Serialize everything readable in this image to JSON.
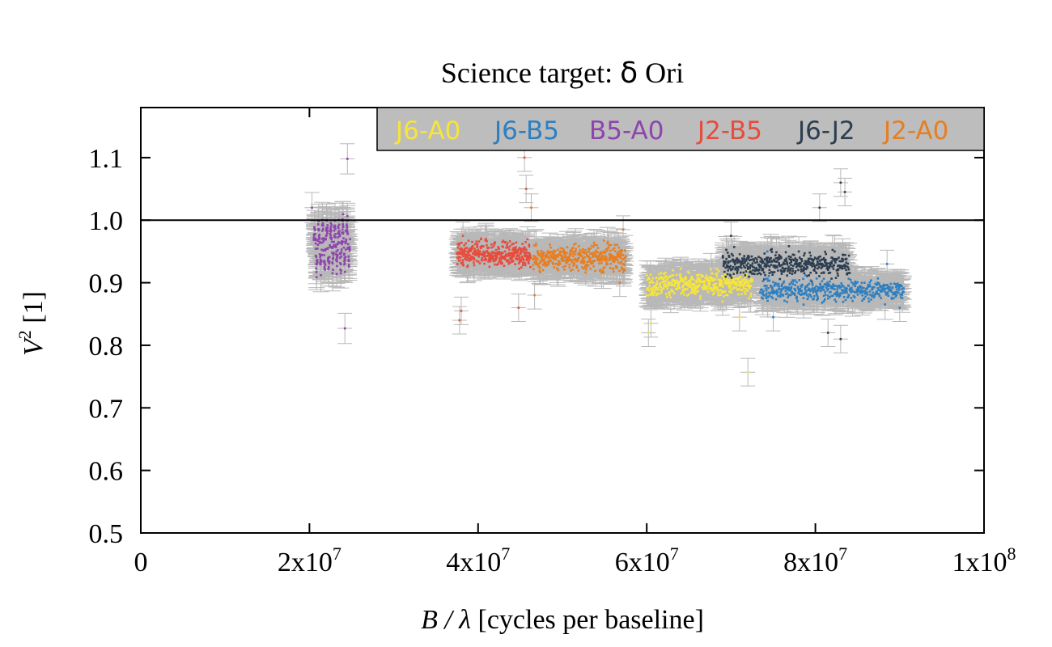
{
  "chart_data": {
    "type": "scatter",
    "title_prefix": "Science target: ",
    "title_greek": "δ",
    "title_suffix": " Ori",
    "xlabel_prefix": "B / λ",
    "xlabel_suffix": " [cycles per baseline]",
    "ylabel_main": "V",
    "ylabel_sup": "2",
    "ylabel_suffix": " [1]",
    "xlim": [
      0,
      100000000
    ],
    "ylim": [
      0.5,
      1.18
    ],
    "x_ticks": [
      {
        "value": 0,
        "mant": "0",
        "exp": ""
      },
      {
        "value": 20000000,
        "mant": "2x10",
        "exp": "7"
      },
      {
        "value": 40000000,
        "mant": "4x10",
        "exp": "7"
      },
      {
        "value": 60000000,
        "mant": "6x10",
        "exp": "7"
      },
      {
        "value": 80000000,
        "mant": "8x10",
        "exp": "7"
      },
      {
        "value": 100000000,
        "mant": "1x10",
        "exp": "8"
      }
    ],
    "y_ticks": [
      {
        "value": 0.5,
        "label": "0.5"
      },
      {
        "value": 0.6,
        "label": "0.6"
      },
      {
        "value": 0.7,
        "label": "0.7"
      },
      {
        "value": 0.8,
        "label": "0.8"
      },
      {
        "value": 0.9,
        "label": "0.9"
      },
      {
        "value": 1.0,
        "label": "1.0"
      },
      {
        "value": 1.1,
        "label": "1.1"
      }
    ],
    "reference_line_y": 1.0,
    "errorbar_color": "#b8b8b8",
    "legend": {
      "placement": "top-right",
      "background": "#bdbdbd",
      "entries": [
        {
          "label": "J6-A0",
          "color": "#f7e53a"
        },
        {
          "label": "J6-B5",
          "color": "#2e7fc0"
        },
        {
          "label": "B5-A0",
          "color": "#8e44ad"
        },
        {
          "label": "J2-B5",
          "color": "#e74c3c"
        },
        {
          "label": "J6-J2",
          "color": "#2c3e50"
        },
        {
          "label": "J2-A0",
          "color": "#e67e22"
        }
      ]
    },
    "series": [
      {
        "name": "B5-A0",
        "color": "#8e44ad",
        "x_range": [
          20500000,
          24800000
        ],
        "y_center": 0.955,
        "y_spread": 0.04,
        "sigma": 0.022,
        "points": 260,
        "oscillating": true,
        "outliers": [
          [
            24200000,
            0.827
          ],
          [
            24500000,
            1.098
          ],
          [
            20300000,
            1.02
          ]
        ]
      },
      {
        "name": "J2-B5",
        "color": "#e74c3c",
        "x_range": [
          37500000,
          46200000
        ],
        "y_center": 0.945,
        "y_spread": 0.018,
        "sigma": 0.02,
        "points": 380,
        "outliers": [
          [
            37800000,
            0.84
          ],
          [
            38000000,
            0.855
          ],
          [
            45500000,
            1.1
          ],
          [
            45700000,
            1.05
          ],
          [
            44800000,
            0.86
          ],
          [
            38200000,
            0.975
          ]
        ]
      },
      {
        "name": "J2-A0",
        "color": "#e67e22",
        "x_range": [
          46500000,
          57500000
        ],
        "y_center": 0.94,
        "y_spread": 0.018,
        "sigma": 0.02,
        "points": 420,
        "outliers": [
          [
            46300000,
            1.02
          ],
          [
            46700000,
            0.88
          ],
          [
            56800000,
            0.9
          ],
          [
            57200000,
            0.985
          ]
        ]
      },
      {
        "name": "J6-A0",
        "color": "#f7e53a",
        "x_range": [
          60000000,
          72500000
        ],
        "y_center": 0.898,
        "y_spread": 0.018,
        "sigma": 0.02,
        "points": 440,
        "outliers": [
          [
            60200000,
            0.82
          ],
          [
            60500000,
            0.835
          ],
          [
            72000000,
            0.757
          ],
          [
            71000000,
            0.845
          ],
          [
            69000000,
            0.87
          ]
        ]
      },
      {
        "name": "J6-J2",
        "color": "#2c3e50",
        "x_range": [
          69000000,
          84000000
        ],
        "y_center": 0.93,
        "y_spread": 0.018,
        "sigma": 0.02,
        "points": 480,
        "outliers": [
          [
            83000000,
            1.06
          ],
          [
            83500000,
            1.045
          ],
          [
            81500000,
            0.82
          ],
          [
            83000000,
            0.81
          ],
          [
            80500000,
            1.02
          ],
          [
            70000000,
            0.975
          ]
        ]
      },
      {
        "name": "J6-B5",
        "color": "#2e7fc0",
        "x_range": [
          73500000,
          90500000
        ],
        "y_center": 0.888,
        "y_spread": 0.015,
        "sigma": 0.02,
        "points": 460,
        "outliers": [
          [
            74300000,
            0.95
          ],
          [
            88500000,
            0.93
          ],
          [
            75000000,
            0.845
          ],
          [
            90000000,
            0.86
          ]
        ]
      }
    ]
  }
}
